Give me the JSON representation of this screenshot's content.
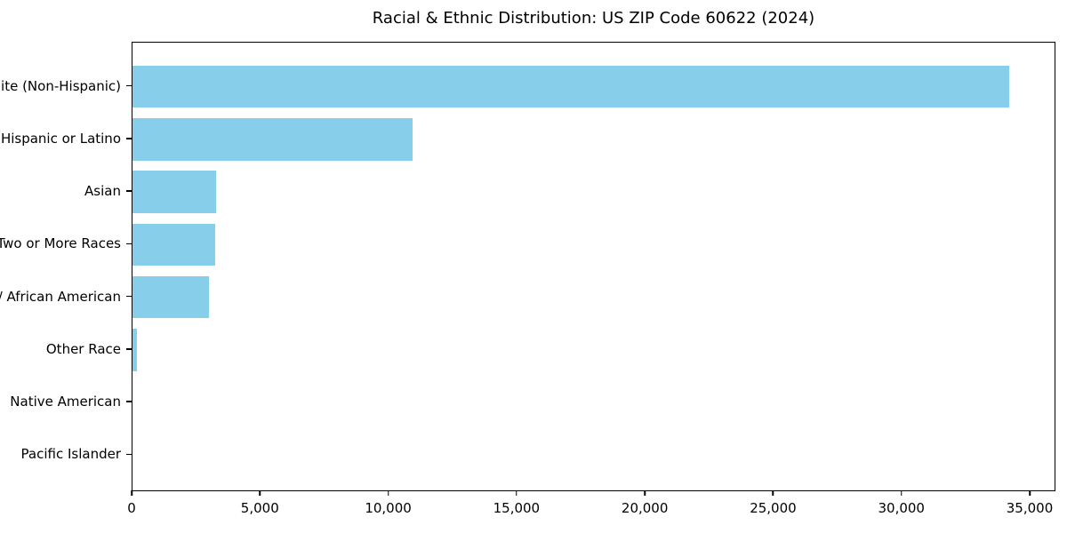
{
  "title": "Racial & Ethnic Distribution: US ZIP Code 60622 (2024)",
  "colors": {
    "bar": "#87CEEB",
    "axis": "#000000",
    "background": "#FFFFFF"
  },
  "chart_data": {
    "type": "bar",
    "orientation": "horizontal",
    "title": "Racial & Ethnic Distribution: US ZIP Code 60622 (2024)",
    "categories": [
      "White (Non-Hispanic)",
      "Hispanic or Latino",
      "Asian",
      "Two or More Races",
      "Black / African American",
      "Other Race",
      "Native American",
      "Pacific Islander"
    ],
    "values": [
      34150,
      10890,
      3240,
      3210,
      2970,
      175,
      0,
      0
    ],
    "bar_color": "#87CEEB",
    "xlabel": "",
    "ylabel": "",
    "xlim": [
      0,
      35900
    ],
    "xticks": [
      0,
      5000,
      10000,
      15000,
      20000,
      25000,
      30000,
      35000
    ],
    "xtick_labels": [
      "0",
      "5,000",
      "10,000",
      "15,000",
      "20,000",
      "25,000",
      "30,000",
      "35,000"
    ],
    "grid": false,
    "legend": null,
    "category_order": "largest value at top"
  }
}
